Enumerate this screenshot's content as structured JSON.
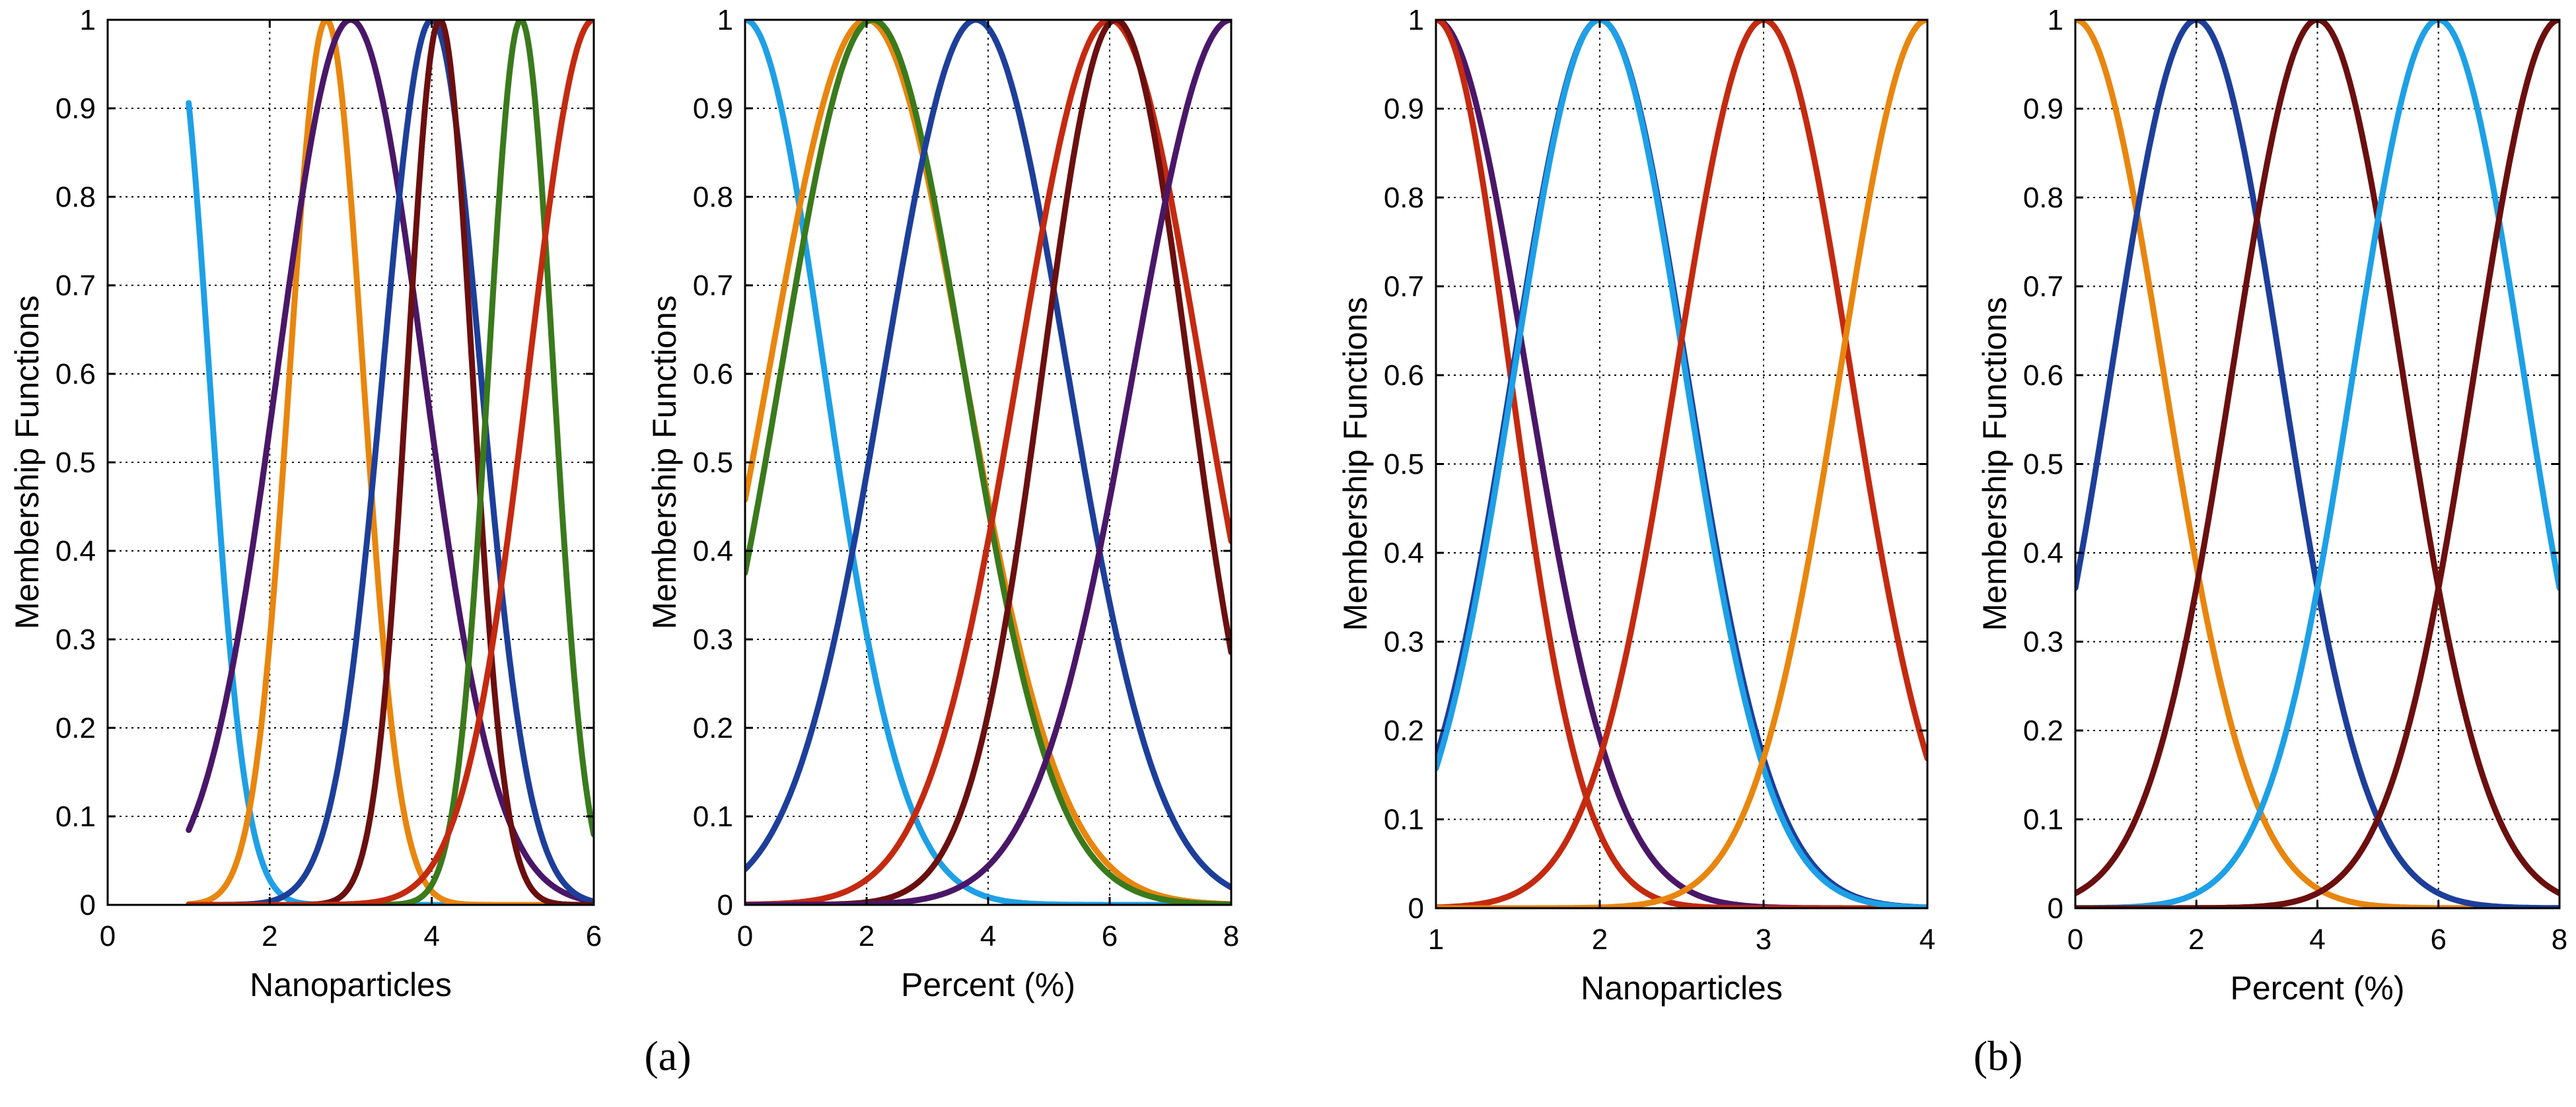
{
  "panel_labels": [
    "(a)",
    "(b)"
  ],
  "colors": {
    "light_blue": "#1ea0e6",
    "orange": "#e8860e",
    "purple": "#4a1768",
    "blue": "#1d3f9a",
    "maroon": "#6b0f0f",
    "green": "#3a7a1c",
    "red": "#c42a10"
  },
  "chart_data": [
    {
      "type": "line",
      "panel": "(a)",
      "title": "",
      "xlabel": "Nanoparticles",
      "ylabel": "Membership Functions",
      "xlim": [
        0,
        6
      ],
      "ylim": [
        0,
        1
      ],
      "xticks": [
        "0",
        "2",
        "4",
        "6"
      ],
      "yticks": [
        "0",
        "0.1",
        "0.2",
        "0.3",
        "0.4",
        "0.5",
        "0.6",
        "0.7",
        "0.8",
        "0.9",
        "1"
      ],
      "grid": true,
      "series": [
        {
          "name": "light blue",
          "color": "#1ea0e6",
          "center": 0.8,
          "sigma": 0.45,
          "x_range": [
            1,
            6
          ]
        },
        {
          "name": "orange",
          "color": "#e8860e",
          "center": 2.7,
          "sigma": 0.45,
          "x_range": [
            1,
            6
          ]
        },
        {
          "name": "purple",
          "color": "#4a1768",
          "center": 3.0,
          "sigma": 0.9,
          "x_range": [
            1,
            6
          ]
        },
        {
          "name": "blue",
          "color": "#1d3f9a",
          "center": 4.0,
          "sigma": 0.6,
          "x_range": [
            1,
            6
          ]
        },
        {
          "name": "maroon",
          "color": "#6b0f0f",
          "center": 4.1,
          "sigma": 0.4,
          "x_range": [
            1,
            6
          ]
        },
        {
          "name": "green",
          "color": "#3a7a1c",
          "center": 5.1,
          "sigma": 0.4,
          "x_range": [
            1,
            6
          ]
        },
        {
          "name": "red",
          "color": "#c42a10",
          "center": 6.0,
          "sigma": 0.8,
          "x_range": [
            1,
            6
          ]
        }
      ]
    },
    {
      "type": "line",
      "panel": "(a)",
      "title": "",
      "xlabel": "Percent (%)",
      "ylabel": "Membership Functions",
      "xlim": [
        0,
        8
      ],
      "ylim": [
        0,
        1
      ],
      "xticks": [
        "0",
        "2",
        "4",
        "6",
        "8"
      ],
      "yticks": [
        "0",
        "0.1",
        "0.2",
        "0.3",
        "0.4",
        "0.5",
        "0.6",
        "0.7",
        "0.8",
        "0.9",
        "1"
      ],
      "grid": true,
      "series": [
        {
          "name": "light blue",
          "color": "#1ea0e6",
          "center": 0.0,
          "sigma": 1.3,
          "x_range": [
            0,
            8
          ]
        },
        {
          "name": "orange",
          "color": "#e8860e",
          "center": 2.0,
          "sigma": 1.6,
          "x_range": [
            0,
            8
          ]
        },
        {
          "name": "green",
          "color": "#3a7a1c",
          "center": 2.1,
          "sigma": 1.5,
          "x_range": [
            0,
            8
          ]
        },
        {
          "name": "blue",
          "color": "#1d3f9a",
          "center": 3.8,
          "sigma": 1.5,
          "x_range": [
            0,
            8
          ]
        },
        {
          "name": "red",
          "color": "#c42a10",
          "center": 6.0,
          "sigma": 1.5,
          "x_range": [
            0,
            8
          ]
        },
        {
          "name": "maroon",
          "color": "#6b0f0f",
          "center": 6.1,
          "sigma": 1.2,
          "x_range": [
            0,
            8
          ]
        },
        {
          "name": "purple",
          "color": "#4a1768",
          "center": 8.0,
          "sigma": 1.6,
          "x_range": [
            0,
            8
          ]
        }
      ]
    },
    {
      "type": "line",
      "panel": "(b)",
      "title": "",
      "xlabel": "Nanoparticles",
      "ylabel": "Membership Functions",
      "xlim": [
        1,
        4
      ],
      "ylim": [
        0,
        1
      ],
      "xticks": [
        "1",
        "2",
        "3",
        "4"
      ],
      "yticks": [
        "0",
        "0.1",
        "0.2",
        "0.3",
        "0.4",
        "0.5",
        "0.6",
        "0.7",
        "0.8",
        "0.9",
        "1"
      ],
      "grid": true,
      "series": [
        {
          "name": "purple",
          "color": "#4a1768",
          "center": 1.0,
          "sigma": 0.55,
          "x_range": [
            1,
            4
          ]
        },
        {
          "name": "red",
          "color": "#c42a10",
          "center": 1.0,
          "sigma": 0.45,
          "x_range": [
            1,
            4
          ]
        },
        {
          "name": "blue",
          "color": "#1d3f9a",
          "center": 2.0,
          "sigma": 0.53,
          "x_range": [
            1,
            4
          ]
        },
        {
          "name": "light blue",
          "color": "#1ea0e6",
          "center": 2.0,
          "sigma": 0.52,
          "x_range": [
            1,
            4
          ]
        },
        {
          "name": "red",
          "color": "#c42a10",
          "center": 3.0,
          "sigma": 0.53,
          "x_range": [
            1,
            4
          ]
        },
        {
          "name": "orange",
          "color": "#e8860e",
          "center": 4.0,
          "sigma": 0.53,
          "x_range": [
            1,
            4
          ]
        }
      ]
    },
    {
      "type": "line",
      "panel": "(b)",
      "title": "",
      "xlabel": "Percent (%)",
      "ylabel": "Membership Functions",
      "xlim": [
        0,
        8
      ],
      "ylim": [
        0,
        1
      ],
      "xticks": [
        "0",
        "2",
        "4",
        "6",
        "8"
      ],
      "yticks": [
        "0",
        "0.1",
        "0.2",
        "0.3",
        "0.4",
        "0.5",
        "0.6",
        "0.7",
        "0.8",
        "0.9",
        "1"
      ],
      "grid": true,
      "series": [
        {
          "name": "orange",
          "color": "#e8860e",
          "center": 0.0,
          "sigma": 1.45,
          "x_range": [
            0,
            8
          ]
        },
        {
          "name": "blue",
          "color": "#1d3f9a",
          "center": 2.0,
          "sigma": 1.4,
          "x_range": [
            0,
            8
          ]
        },
        {
          "name": "maroon",
          "color": "#6b0f0f",
          "center": 4.0,
          "sigma": 1.4,
          "x_range": [
            0,
            8
          ]
        },
        {
          "name": "light blue",
          "color": "#1ea0e6",
          "center": 6.0,
          "sigma": 1.4,
          "x_range": [
            0,
            8
          ]
        },
        {
          "name": "red",
          "color": "#c42a10",
          "center": 8.0,
          "sigma": 1.4,
          "x_range": [
            0,
            8
          ]
        },
        {
          "name": "maroon",
          "color": "#6b0f0f",
          "center": 8.0,
          "sigma": 1.4,
          "x_range": [
            0,
            8
          ]
        }
      ]
    }
  ]
}
